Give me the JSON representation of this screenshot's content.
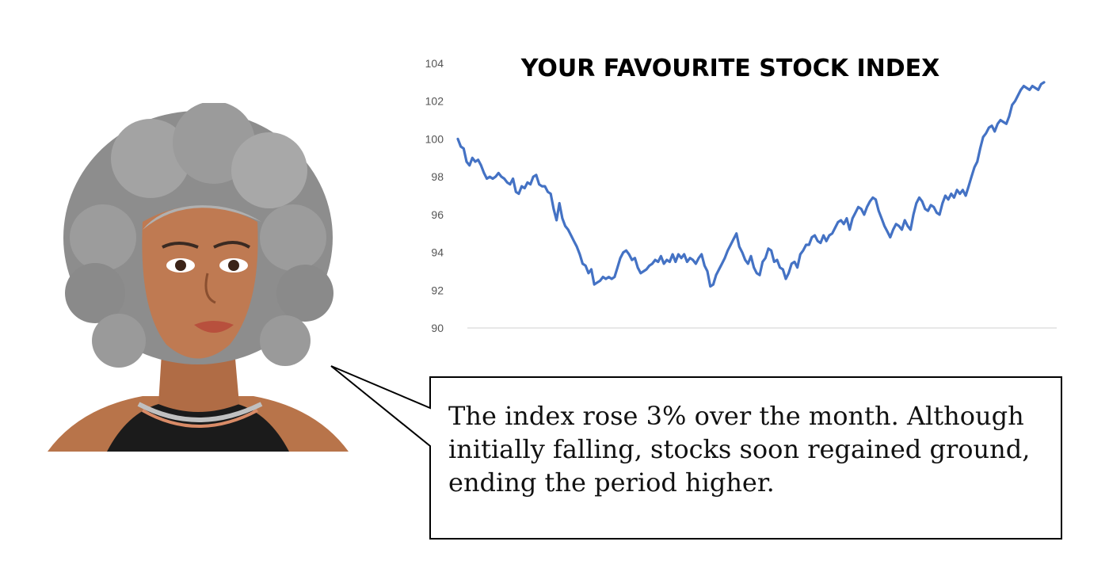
{
  "chart_data": {
    "type": "line",
    "title": "YOUR FAVOURITE STOCK INDEX",
    "xlabel": "",
    "ylabel": "",
    "ylim": [
      90,
      104
    ],
    "yticks": [
      90,
      92,
      94,
      96,
      98,
      100,
      102,
      104
    ],
    "grid": false,
    "legend": "none",
    "series": [
      {
        "color": "#4472C4",
        "values": [
          100.0,
          99.6,
          99.5,
          98.8,
          98.6,
          99.0,
          98.8,
          98.9,
          98.6,
          98.2,
          97.9,
          98.0,
          97.9,
          98.0,
          98.2,
          98.0,
          97.9,
          97.7,
          97.6,
          97.9,
          97.2,
          97.1,
          97.5,
          97.4,
          97.7,
          97.6,
          98.0,
          98.1,
          97.6,
          97.5,
          97.5,
          97.2,
          97.1,
          96.3,
          95.7,
          96.6,
          95.8,
          95.4,
          95.2,
          94.9,
          94.6,
          94.3,
          93.9,
          93.4,
          93.3,
          92.9,
          93.1,
          92.3,
          92.4,
          92.5,
          92.7,
          92.6,
          92.7,
          92.6,
          92.7,
          93.2,
          93.7,
          94.0,
          94.1,
          93.9,
          93.6,
          93.7,
          93.2,
          92.9,
          93.0,
          93.1,
          93.3,
          93.4,
          93.6,
          93.5,
          93.8,
          93.4,
          93.6,
          93.5,
          93.9,
          93.5,
          93.9,
          93.7,
          93.9,
          93.5,
          93.7,
          93.6,
          93.4,
          93.7,
          93.9,
          93.3,
          93.0,
          92.2,
          92.3,
          92.8,
          93.1,
          93.4,
          93.7,
          94.1,
          94.4,
          94.7,
          95.0,
          94.3,
          94.0,
          93.6,
          93.4,
          93.8,
          93.2,
          92.9,
          92.8,
          93.5,
          93.7,
          94.2,
          94.1,
          93.5,
          93.6,
          93.2,
          93.1,
          92.6,
          92.9,
          93.4,
          93.5,
          93.2,
          93.9,
          94.1,
          94.4,
          94.4,
          94.8,
          94.9,
          94.6,
          94.5,
          94.9,
          94.6,
          94.9,
          95.0,
          95.3,
          95.6,
          95.7,
          95.5,
          95.8,
          95.2,
          95.8,
          96.1,
          96.4,
          96.3,
          96.0,
          96.4,
          96.7,
          96.9,
          96.8,
          96.2,
          95.8,
          95.4,
          95.1,
          94.8,
          95.2,
          95.5,
          95.4,
          95.2,
          95.7,
          95.4,
          95.2,
          96.0,
          96.6,
          96.9,
          96.7,
          96.3,
          96.2,
          96.5,
          96.4,
          96.1,
          96.0,
          96.6,
          97.0,
          96.8,
          97.1,
          96.9,
          97.3,
          97.1,
          97.3,
          97.0,
          97.5,
          98.0,
          98.5,
          98.8,
          99.5,
          100.1,
          100.3,
          100.6,
          100.7,
          100.4,
          100.8,
          101.0,
          100.9,
          100.8,
          101.2,
          101.8,
          102.0,
          102.3,
          102.6,
          102.8,
          102.7,
          102.6,
          102.8,
          102.7,
          102.6,
          102.9,
          103.0
        ]
      }
    ]
  },
  "speech": {
    "text": "The index rose 3% over the month. Although initially falling, stocks soon regained ground, ending the period higher."
  }
}
